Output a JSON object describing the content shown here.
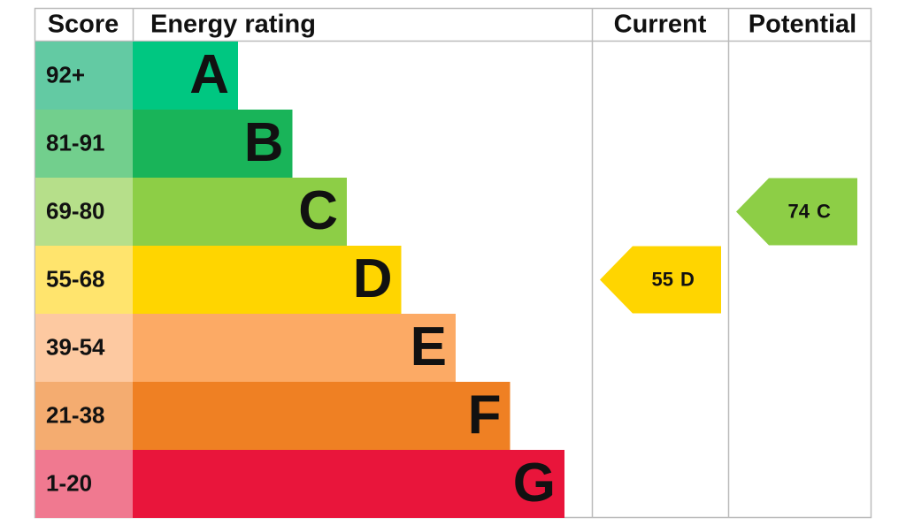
{
  "chart_data": {
    "type": "epc",
    "headers": {
      "score": "Score",
      "rating": "Energy rating",
      "current": "Current",
      "potential": "Potential"
    },
    "bands": [
      {
        "score": "92+",
        "letter": "A",
        "color": "#00c781",
        "cell_color": "#63caa3"
      },
      {
        "score": "81-91",
        "letter": "B",
        "color": "#19b459",
        "cell_color": "#72cf8d"
      },
      {
        "score": "69-80",
        "letter": "C",
        "color": "#8dce46",
        "cell_color": "#b6df8a"
      },
      {
        "score": "55-68",
        "letter": "D",
        "color": "#ffd500",
        "cell_color": "#ffe46d"
      },
      {
        "score": "39-54",
        "letter": "E",
        "color": "#fcaa65",
        "cell_color": "#fdc9a1"
      },
      {
        "score": "21-38",
        "letter": "F",
        "color": "#ef8023",
        "cell_color": "#f4ac70"
      },
      {
        "score": "1-20",
        "letter": "G",
        "color": "#e9153b",
        "cell_color": "#f07990"
      }
    ],
    "current": {
      "value": 55,
      "letter": "D"
    },
    "potential": {
      "value": 74,
      "letter": "C"
    }
  }
}
